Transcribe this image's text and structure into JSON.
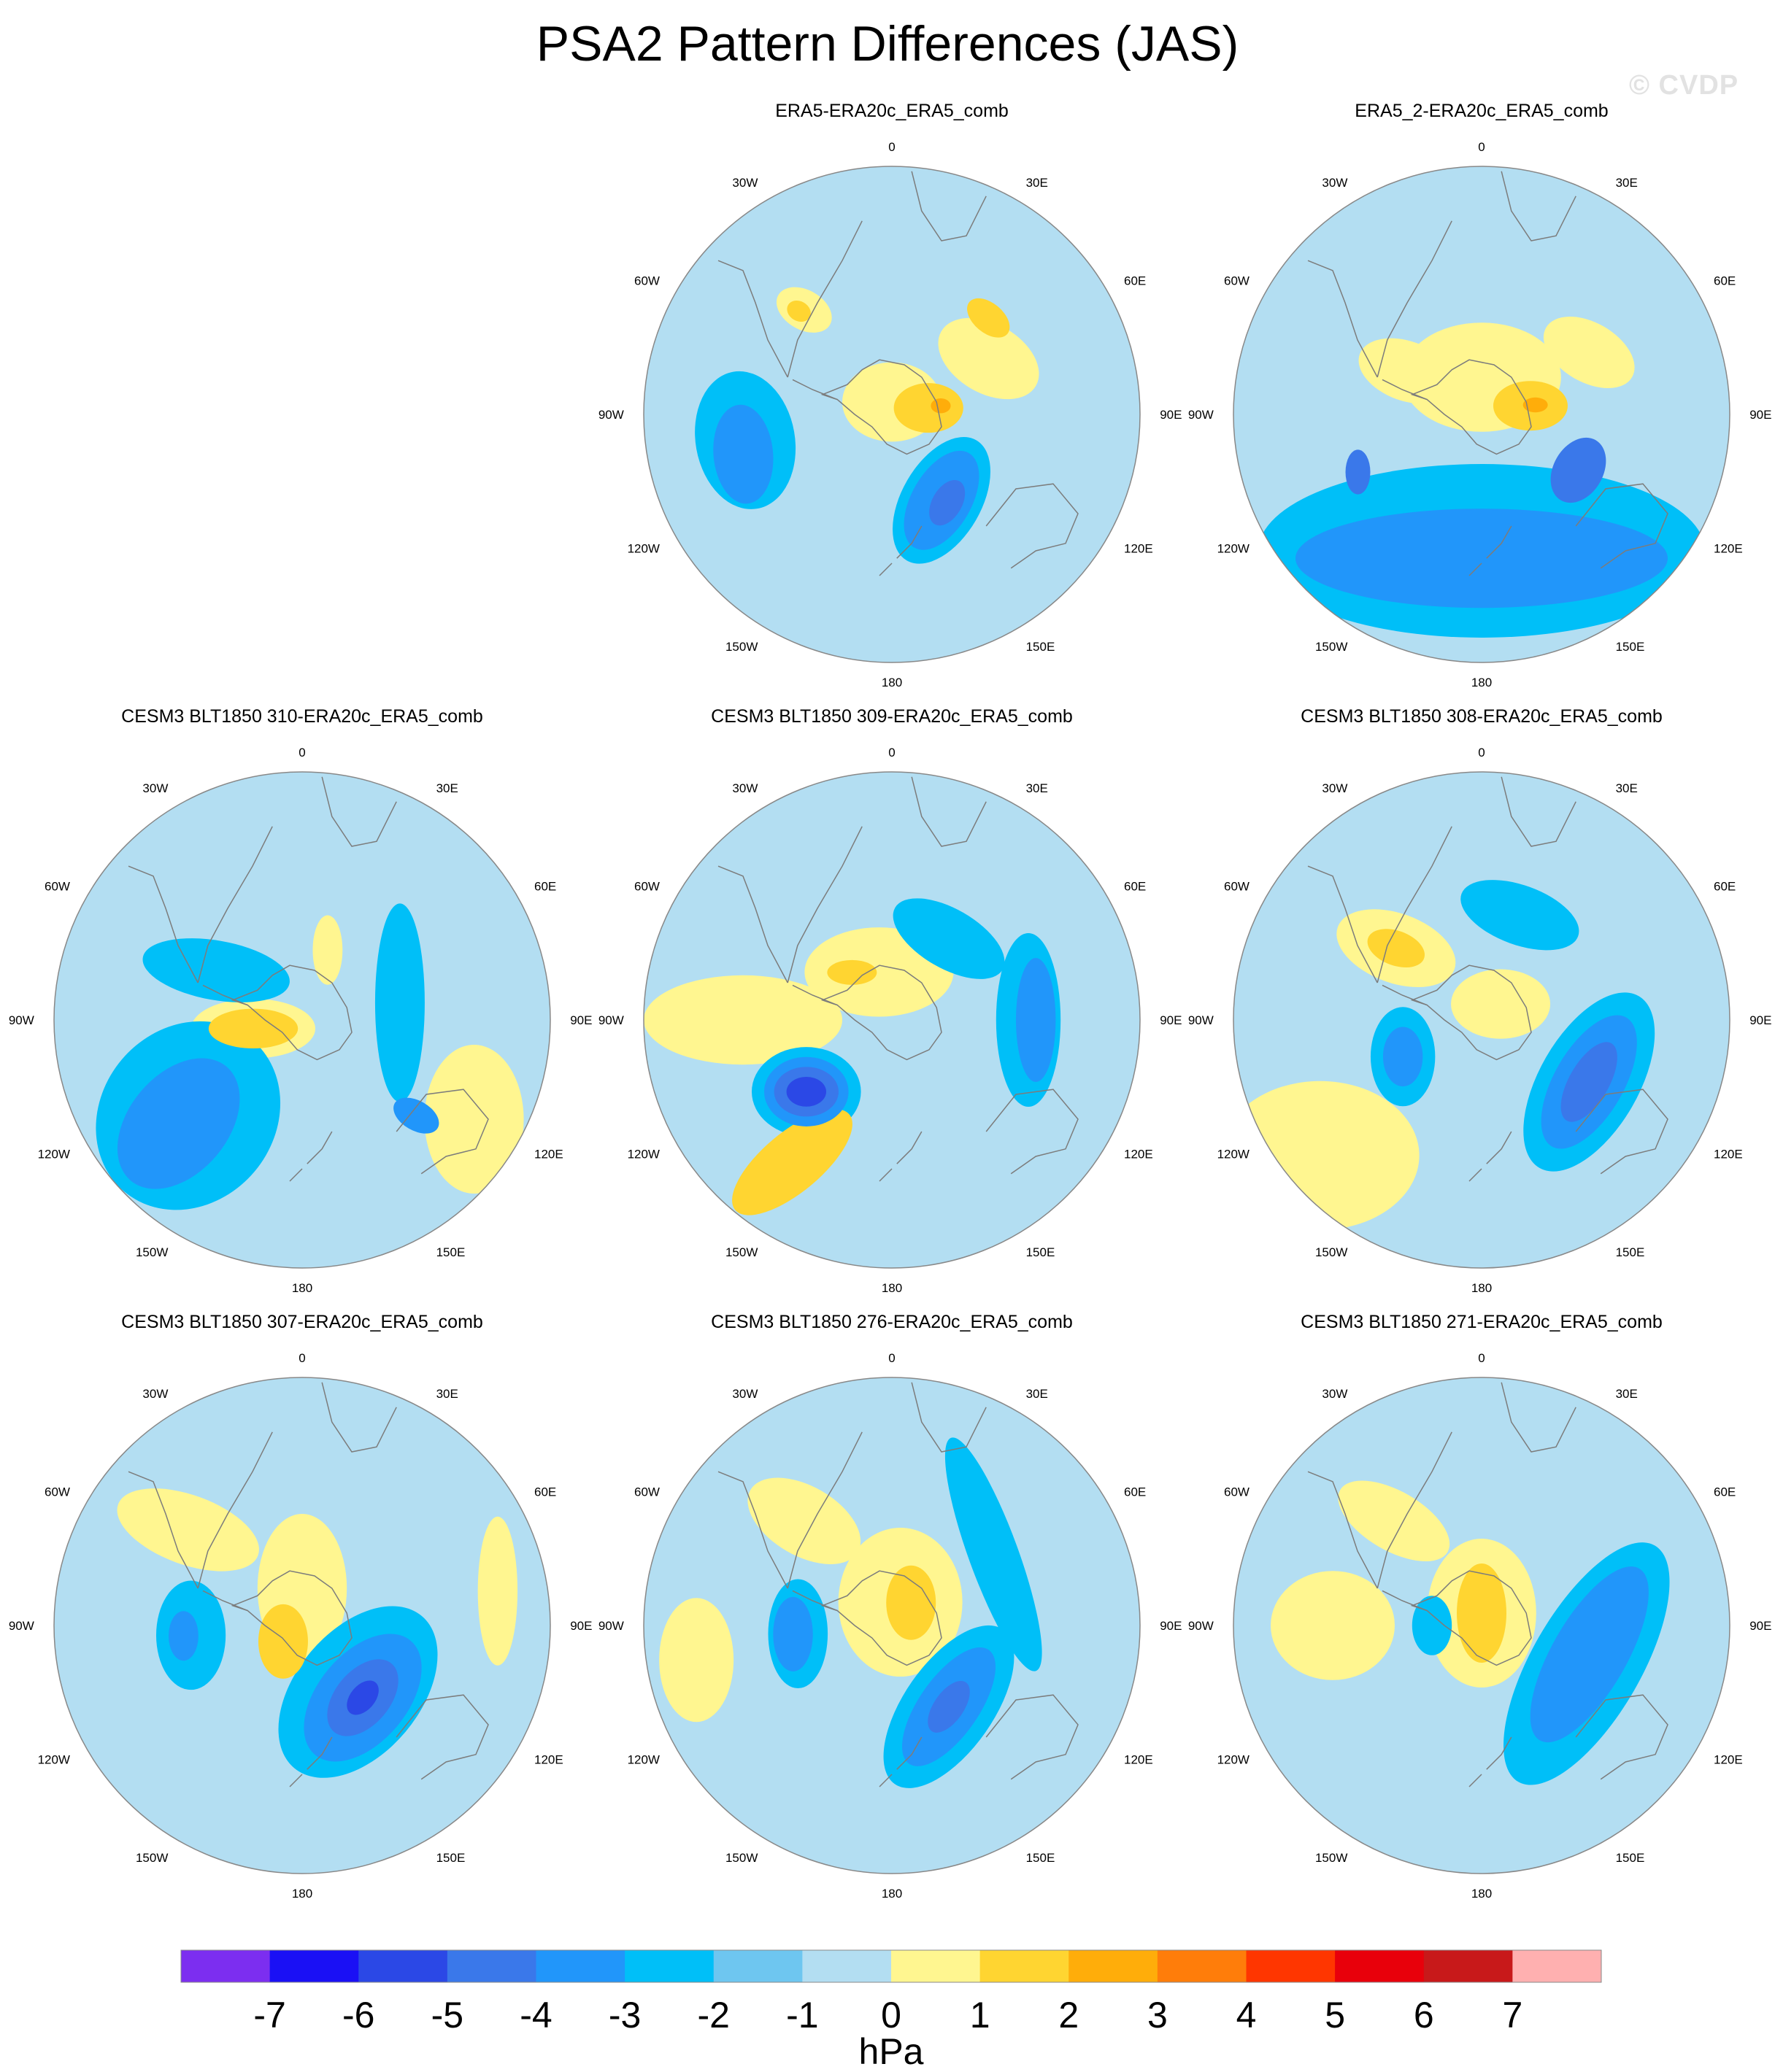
{
  "figure": {
    "title": "PSA2 Pattern Differences (JAS)",
    "watermark": "© CVDP"
  },
  "colors": {
    "ocean_base": "#b3def2",
    "coast": "#7c7c7c",
    "frame": "#888888"
  },
  "map_labels": [
    "0",
    "30E",
    "60E",
    "90E",
    "120E",
    "150E",
    "180",
    "150W",
    "120W",
    "90W",
    "60W",
    "30W"
  ],
  "panels": [
    {
      "id": "era5",
      "title": "ERA5-ERA20c_ERA5_comb",
      "features": [
        {
          "lon": 60,
          "r": 0.45,
          "rx": 0.22,
          "ry": 0.14,
          "rot": 30,
          "level": 1
        },
        {
          "lon": 45,
          "r": 0.55,
          "rx": 0.1,
          "ry": 0.06,
          "rot": 40,
          "level": 2
        },
        {
          "lon": 150,
          "r": 0.4,
          "rx": 0.16,
          "ry": 0.28,
          "rot": 30,
          "level": -2
        },
        {
          "lon": 150,
          "r": 0.4,
          "rx": 0.12,
          "ry": 0.22,
          "rot": 30,
          "level": -3
        },
        {
          "lon": 148,
          "r": 0.42,
          "rx": 0.06,
          "ry": 0.1,
          "rot": 30,
          "level": -4
        },
        {
          "lon": 260,
          "r": 0.6,
          "rx": 0.28,
          "ry": 0.2,
          "rot": 80,
          "level": -2
        },
        {
          "lon": 255,
          "r": 0.62,
          "rx": 0.2,
          "ry": 0.12,
          "rot": 85,
          "level": -3
        },
        {
          "lon": 320,
          "r": 0.55,
          "rx": 0.12,
          "ry": 0.08,
          "rot": 30,
          "level": 1
        },
        {
          "lon": 318,
          "r": 0.56,
          "rx": 0.05,
          "ry": 0.04,
          "rot": 30,
          "level": 2
        },
        {
          "lon": 0,
          "r": 0.05,
          "rx": 0.2,
          "ry": 0.16,
          "rot": 0,
          "level": 1
        },
        {
          "lon": 80,
          "r": 0.15,
          "rx": 0.14,
          "ry": 0.1,
          "rot": 0,
          "level": 2
        },
        {
          "lon": 80,
          "r": 0.2,
          "rx": 0.04,
          "ry": 0.03,
          "rot": 0,
          "level": 3
        }
      ]
    },
    {
      "id": "era5_2",
      "title": "ERA5_2-ERA20c_ERA5_comb",
      "features": [
        {
          "lon": 0,
          "r": 0.15,
          "rx": 0.32,
          "ry": 0.22,
          "rot": 0,
          "level": 1
        },
        {
          "lon": 80,
          "r": 0.2,
          "rx": 0.15,
          "ry": 0.1,
          "rot": 0,
          "level": 2
        },
        {
          "lon": 80,
          "r": 0.22,
          "rx": 0.05,
          "ry": 0.03,
          "rot": 0,
          "level": 3
        },
        {
          "lon": 180,
          "r": 0.55,
          "rx": 0.9,
          "ry": 0.35,
          "rot": 0,
          "level": -2
        },
        {
          "lon": 180,
          "r": 0.58,
          "rx": 0.75,
          "ry": 0.2,
          "rot": 0,
          "level": -3
        },
        {
          "lon": 120,
          "r": 0.45,
          "rx": 0.1,
          "ry": 0.14,
          "rot": 30,
          "level": -4
        },
        {
          "lon": 245,
          "r": 0.55,
          "rx": 0.05,
          "ry": 0.09,
          "rot": 0,
          "level": -4
        },
        {
          "lon": 300,
          "r": 0.35,
          "rx": 0.2,
          "ry": 0.12,
          "rot": 20,
          "level": 1
        },
        {
          "lon": 60,
          "r": 0.5,
          "rx": 0.2,
          "ry": 0.12,
          "rot": 30,
          "level": 1
        }
      ]
    },
    {
      "id": "cesm310",
      "title": "CESM3 BLT1850 310-ERA20c_ERA5_comb",
      "features": [
        {
          "lon": 300,
          "r": 0.4,
          "rx": 0.3,
          "ry": 0.12,
          "rot": 10,
          "level": -2
        },
        {
          "lon": 230,
          "r": 0.65,
          "rx": 0.2,
          "ry": 0.3,
          "rot": 40,
          "level": -3
        },
        {
          "lon": 230,
          "r": 0.6,
          "rx": 0.35,
          "ry": 0.4,
          "rot": 40,
          "level": -2
        },
        {
          "lon": 130,
          "r": 0.6,
          "rx": 0.1,
          "ry": 0.06,
          "rot": 30,
          "level": -3
        },
        {
          "lon": 80,
          "r": 0.4,
          "rx": 0.1,
          "ry": 0.4,
          "rot": 0,
          "level": -2
        },
        {
          "lon": 260,
          "r": 0.2,
          "rx": 0.25,
          "ry": 0.12,
          "rot": 0,
          "level": 1
        },
        {
          "lon": 260,
          "r": 0.2,
          "rx": 0.18,
          "ry": 0.08,
          "rot": 0,
          "level": 2
        },
        {
          "lon": 20,
          "r": 0.3,
          "rx": 0.06,
          "ry": 0.14,
          "rot": 0,
          "level": 1
        },
        {
          "lon": 120,
          "r": 0.8,
          "rx": 0.2,
          "ry": 0.3,
          "rot": 0,
          "level": 1
        }
      ]
    },
    {
      "id": "cesm309",
      "title": "CESM3 BLT1850 309-ERA20c_ERA5_comb",
      "features": [
        {
          "lon": 230,
          "r": 0.45,
          "rx": 0.22,
          "ry": 0.18,
          "rot": 0,
          "level": -2
        },
        {
          "lon": 230,
          "r": 0.45,
          "rx": 0.17,
          "ry": 0.14,
          "rot": 0,
          "level": -3
        },
        {
          "lon": 230,
          "r": 0.45,
          "rx": 0.13,
          "ry": 0.1,
          "rot": 0,
          "level": -4
        },
        {
          "lon": 230,
          "r": 0.45,
          "rx": 0.08,
          "ry": 0.06,
          "rot": 0,
          "level": -5
        },
        {
          "lon": 90,
          "r": 0.55,
          "rx": 0.13,
          "ry": 0.35,
          "rot": 0,
          "level": -2
        },
        {
          "lon": 90,
          "r": 0.58,
          "rx": 0.08,
          "ry": 0.25,
          "rot": 0,
          "level": -3
        },
        {
          "lon": 35,
          "r": 0.4,
          "rx": 0.25,
          "ry": 0.12,
          "rot": 30,
          "level": -2
        },
        {
          "lon": 270,
          "r": 0.6,
          "rx": 0.4,
          "ry": 0.18,
          "rot": 0,
          "level": 1
        },
        {
          "lon": 215,
          "r": 0.7,
          "rx": 0.3,
          "ry": 0.12,
          "rot": -40,
          "level": 2
        },
        {
          "lon": 345,
          "r": 0.2,
          "rx": 0.3,
          "ry": 0.18,
          "rot": 0,
          "level": 1
        },
        {
          "lon": 320,
          "r": 0.25,
          "rx": 0.1,
          "ry": 0.05,
          "rot": 0,
          "level": 2
        }
      ]
    },
    {
      "id": "cesm308",
      "title": "CESM3 BLT1850 308-ERA20c_ERA5_comb",
      "features": [
        {
          "lon": 120,
          "r": 0.5,
          "rx": 0.2,
          "ry": 0.4,
          "rot": 30,
          "level": -2
        },
        {
          "lon": 120,
          "r": 0.5,
          "rx": 0.14,
          "ry": 0.3,
          "rot": 30,
          "level": -3
        },
        {
          "lon": 120,
          "r": 0.5,
          "rx": 0.08,
          "ry": 0.18,
          "rot": 30,
          "level": -4
        },
        {
          "lon": 245,
          "r": 0.35,
          "rx": 0.13,
          "ry": 0.2,
          "rot": 0,
          "level": -2
        },
        {
          "lon": 245,
          "r": 0.35,
          "rx": 0.08,
          "ry": 0.12,
          "rot": 0,
          "level": -3
        },
        {
          "lon": 20,
          "r": 0.45,
          "rx": 0.25,
          "ry": 0.12,
          "rot": 20,
          "level": -2
        },
        {
          "lon": 310,
          "r": 0.45,
          "rx": 0.25,
          "ry": 0.14,
          "rot": 20,
          "level": 1
        },
        {
          "lon": 310,
          "r": 0.45,
          "rx": 0.12,
          "ry": 0.07,
          "rot": 20,
          "level": 2
        },
        {
          "lon": 230,
          "r": 0.85,
          "rx": 0.4,
          "ry": 0.3,
          "rot": 0,
          "level": 1
        },
        {
          "lon": 50,
          "r": 0.1,
          "rx": 0.2,
          "ry": 0.14,
          "rot": 0,
          "level": 1
        }
      ]
    },
    {
      "id": "cesm307",
      "title": "CESM3 BLT1850 307-ERA20c_ERA5_comb",
      "features": [
        {
          "lon": 140,
          "r": 0.35,
          "rx": 0.25,
          "ry": 0.4,
          "rot": 40,
          "level": -2
        },
        {
          "lon": 140,
          "r": 0.38,
          "rx": 0.18,
          "ry": 0.3,
          "rot": 40,
          "level": -3
        },
        {
          "lon": 140,
          "r": 0.38,
          "rx": 0.11,
          "ry": 0.18,
          "rot": 40,
          "level": -4
        },
        {
          "lon": 140,
          "r": 0.38,
          "rx": 0.05,
          "ry": 0.08,
          "rot": 40,
          "level": -5
        },
        {
          "lon": 265,
          "r": 0.45,
          "rx": 0.14,
          "ry": 0.22,
          "rot": 0,
          "level": -2
        },
        {
          "lon": 265,
          "r": 0.48,
          "rx": 0.06,
          "ry": 0.1,
          "rot": 0,
          "level": -3
        },
        {
          "lon": 310,
          "r": 0.6,
          "rx": 0.3,
          "ry": 0.14,
          "rot": 20,
          "level": 1
        },
        {
          "lon": 0,
          "r": 0.15,
          "rx": 0.18,
          "ry": 0.3,
          "rot": 0,
          "level": 1
        },
        {
          "lon": 230,
          "r": 0.1,
          "rx": 0.1,
          "ry": 0.15,
          "rot": 0,
          "level": 2
        },
        {
          "lon": 80,
          "r": 0.8,
          "rx": 0.08,
          "ry": 0.3,
          "rot": 0,
          "level": 1
        }
      ]
    },
    {
      "id": "cesm276",
      "title": "CESM3 BLT1850 276-ERA20c_ERA5_comb",
      "features": [
        {
          "lon": 145,
          "r": 0.4,
          "rx": 0.18,
          "ry": 0.38,
          "rot": 35,
          "level": -2
        },
        {
          "lon": 145,
          "r": 0.4,
          "rx": 0.12,
          "ry": 0.28,
          "rot": 35,
          "level": -3
        },
        {
          "lon": 145,
          "r": 0.4,
          "rx": 0.06,
          "ry": 0.12,
          "rot": 35,
          "level": -4
        },
        {
          "lon": 265,
          "r": 0.38,
          "rx": 0.12,
          "ry": 0.22,
          "rot": 0,
          "level": -2
        },
        {
          "lon": 265,
          "r": 0.4,
          "rx": 0.08,
          "ry": 0.15,
          "rot": 0,
          "level": -3
        },
        {
          "lon": 55,
          "r": 0.5,
          "rx": 0.1,
          "ry": 0.5,
          "rot": -20,
          "level": -2
        },
        {
          "lon": 320,
          "r": 0.55,
          "rx": 0.25,
          "ry": 0.14,
          "rot": 30,
          "level": 1
        },
        {
          "lon": 260,
          "r": 0.8,
          "rx": 0.15,
          "ry": 0.25,
          "rot": 0,
          "level": 1
        },
        {
          "lon": 20,
          "r": 0.1,
          "rx": 0.25,
          "ry": 0.3,
          "rot": 0,
          "level": 1
        },
        {
          "lon": 40,
          "r": 0.12,
          "rx": 0.1,
          "ry": 0.15,
          "rot": 0,
          "level": 2
        }
      ]
    },
    {
      "id": "cesm271",
      "title": "CESM3 BLT1850 271-ERA20c_ERA5_comb",
      "features": [
        {
          "lon": 110,
          "r": 0.45,
          "rx": 0.22,
          "ry": 0.55,
          "rot": 30,
          "level": -2
        },
        {
          "lon": 105,
          "r": 0.45,
          "rx": 0.15,
          "ry": 0.4,
          "rot": 30,
          "level": -3
        },
        {
          "lon": 270,
          "r": 0.2,
          "rx": 0.08,
          "ry": 0.12,
          "rot": 0,
          "level": -2
        },
        {
          "lon": 0,
          "r": 0.05,
          "rx": 0.22,
          "ry": 0.3,
          "rot": 0,
          "level": 1
        },
        {
          "lon": 0,
          "r": 0.05,
          "rx": 0.1,
          "ry": 0.2,
          "rot": 0,
          "level": 2
        },
        {
          "lon": 270,
          "r": 0.6,
          "rx": 0.25,
          "ry": 0.22,
          "rot": 0,
          "level": 1
        },
        {
          "lon": 320,
          "r": 0.55,
          "rx": 0.25,
          "ry": 0.12,
          "rot": 30,
          "level": 1
        }
      ]
    }
  ],
  "colorbar": {
    "units": "hPa",
    "labels": [
      "-7",
      "-6",
      "-5",
      "-4",
      "-3",
      "-2",
      "-1",
      "0",
      "1",
      "2",
      "3",
      "4",
      "5",
      "6",
      "7"
    ],
    "colors": [
      "#7c2ef0",
      "#1a10f5",
      "#2b48e6",
      "#3a78ea",
      "#2196fa",
      "#00bff8",
      "#6ec6f0",
      "#b3def2",
      "#fff690",
      "#ffd531",
      "#ffad0a",
      "#ff7d0a",
      "#ff3600",
      "#e8000b",
      "#c8191a",
      "#ffb0b0"
    ]
  }
}
